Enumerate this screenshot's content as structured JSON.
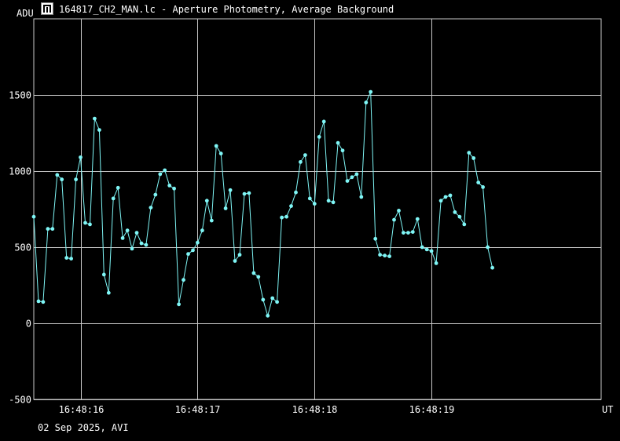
{
  "window": {
    "title": "164817_CH2_MAN.lc - Aperture Photometry, Average Background",
    "icon": "lightcurve-app-icon"
  },
  "footer": {
    "date_label": "02 Sep 2025, AVI"
  },
  "colors": {
    "background": "#000000",
    "grid": "#c8c8c8",
    "series": "#7ff6f6",
    "text": "#ffffff"
  },
  "chart_data": {
    "type": "line",
    "title": "",
    "ylabel": "ADU",
    "xlabel": "UT",
    "ylim": [
      -500,
      2000
    ],
    "xlim": [
      "16:48:15.60",
      "16:48:20.45"
    ],
    "yticks": [
      -500,
      0,
      500,
      1000,
      1500
    ],
    "xticks": [
      "16:48:16",
      "16:48:17",
      "16:48:18",
      "16:48:19"
    ],
    "grid": true,
    "series": [
      {
        "values": [
          [
            0.0,
            700
          ],
          [
            0.04,
            145
          ],
          [
            0.08,
            140
          ],
          [
            0.12,
            620
          ],
          [
            0.16,
            620
          ],
          [
            0.2,
            975
          ],
          [
            0.24,
            945
          ],
          [
            0.28,
            430
          ],
          [
            0.32,
            425
          ],
          [
            0.36,
            945
          ],
          [
            0.4,
            1090
          ],
          [
            0.44,
            660
          ],
          [
            0.48,
            650
          ],
          [
            0.52,
            1345
          ],
          [
            0.56,
            1270
          ],
          [
            0.6,
            320
          ],
          [
            0.64,
            200
          ],
          [
            0.68,
            820
          ],
          [
            0.72,
            890
          ],
          [
            0.76,
            560
          ],
          [
            0.8,
            610
          ],
          [
            0.84,
            490
          ],
          [
            0.88,
            595
          ],
          [
            0.92,
            525
          ],
          [
            0.96,
            515
          ],
          [
            1.0,
            760
          ],
          [
            1.04,
            845
          ],
          [
            1.08,
            980
          ],
          [
            1.12,
            1005
          ],
          [
            1.16,
            905
          ],
          [
            1.2,
            885
          ],
          [
            1.24,
            125
          ],
          [
            1.28,
            285
          ],
          [
            1.32,
            455
          ],
          [
            1.36,
            480
          ],
          [
            1.4,
            530
          ],
          [
            1.44,
            610
          ],
          [
            1.48,
            805
          ],
          [
            1.52,
            675
          ],
          [
            1.56,
            1165
          ],
          [
            1.6,
            1115
          ],
          [
            1.64,
            755
          ],
          [
            1.68,
            875
          ],
          [
            1.72,
            410
          ],
          [
            1.76,
            450
          ],
          [
            1.8,
            850
          ],
          [
            1.84,
            855
          ],
          [
            1.88,
            330
          ],
          [
            1.92,
            305
          ],
          [
            1.96,
            155
          ],
          [
            2.0,
            50
          ],
          [
            2.04,
            165
          ],
          [
            2.08,
            140
          ],
          [
            2.12,
            695
          ],
          [
            2.16,
            700
          ],
          [
            2.2,
            770
          ],
          [
            2.24,
            860
          ],
          [
            2.28,
            1060
          ],
          [
            2.32,
            1105
          ],
          [
            2.36,
            820
          ],
          [
            2.4,
            785
          ],
          [
            2.44,
            1225
          ],
          [
            2.48,
            1325
          ],
          [
            2.52,
            805
          ],
          [
            2.56,
            795
          ],
          [
            2.6,
            1185
          ],
          [
            2.64,
            1135
          ],
          [
            2.68,
            935
          ],
          [
            2.72,
            960
          ],
          [
            2.76,
            980
          ],
          [
            2.8,
            830
          ],
          [
            2.84,
            1450
          ],
          [
            2.88,
            1520
          ],
          [
            2.92,
            555
          ],
          [
            2.96,
            450
          ],
          [
            3.0,
            445
          ],
          [
            3.04,
            440
          ],
          [
            3.08,
            680
          ],
          [
            3.12,
            740
          ],
          [
            3.16,
            595
          ],
          [
            3.2,
            595
          ],
          [
            3.24,
            600
          ],
          [
            3.28,
            685
          ],
          [
            3.32,
            500
          ],
          [
            3.36,
            485
          ],
          [
            3.4,
            475
          ],
          [
            3.44,
            395
          ],
          [
            3.48,
            805
          ],
          [
            3.52,
            830
          ],
          [
            3.56,
            840
          ],
          [
            3.6,
            730
          ],
          [
            3.64,
            700
          ],
          [
            3.68,
            650
          ],
          [
            3.72,
            1120
          ],
          [
            3.76,
            1085
          ],
          [
            3.8,
            925
          ],
          [
            3.84,
            895
          ],
          [
            3.88,
            500
          ],
          [
            3.92,
            365
          ]
        ]
      }
    ]
  }
}
